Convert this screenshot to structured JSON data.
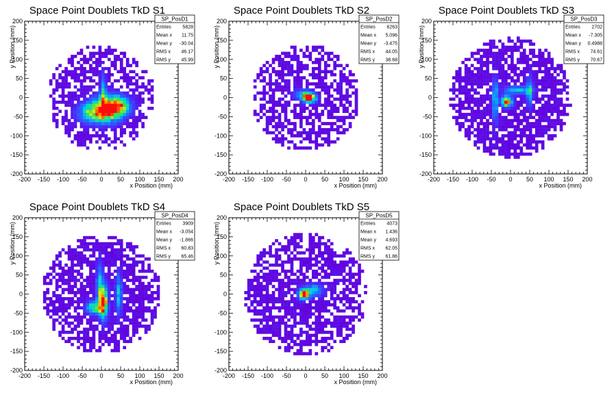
{
  "chart_data": [
    {
      "type": "heatmap",
      "title": "Space Point Doublets TkD S1",
      "xlabel": "x Position (mm)",
      "ylabel": "y Position (mm)",
      "xlim": [
        -200,
        200
      ],
      "ylim": [
        -200,
        200
      ],
      "xticks": [
        "-200",
        "-150",
        "-100",
        "-50",
        "0",
        "50",
        "100",
        "150",
        "200"
      ],
      "yticks": [
        "-200",
        "-150",
        "-100",
        "-50",
        "0",
        "50",
        "100",
        "150",
        "200"
      ],
      "stats": {
        "name": "SP_PosD1",
        "rows": [
          {
            "label": "Entries",
            "value": "5828"
          },
          {
            "label": "Mean x",
            "value": "11.75"
          },
          {
            "label": "Mean y",
            "value": "-30.04"
          },
          {
            "label": "RMS x",
            "value": "46.17"
          },
          {
            "label": "RMS y",
            "value": "45.99"
          }
        ]
      },
      "radius": 140,
      "fill_prob": 0.6,
      "hotspots": [
        {
          "x": 15,
          "y": -30,
          "sx": 28,
          "sy": 22,
          "amp": 1.0
        },
        {
          "x": 45,
          "y": -20,
          "sx": 22,
          "sy": 16,
          "amp": 0.6
        },
        {
          "x": -30,
          "y": -40,
          "sx": 25,
          "sy": 18,
          "amp": 0.45
        },
        {
          "x": 5,
          "y": 20,
          "sx": 5,
          "sy": 35,
          "amp": 0.4
        }
      ],
      "seed": 11
    },
    {
      "type": "heatmap",
      "title": "Space Point Doublets TkD S2",
      "xlabel": "x Position (mm)",
      "ylabel": "y Position (mm)",
      "xlim": [
        -200,
        200
      ],
      "ylim": [
        -200,
        200
      ],
      "xticks": [
        "-200",
        "-150",
        "-100",
        "-50",
        "0",
        "50",
        "100",
        "150",
        "200"
      ],
      "yticks": [
        "-200",
        "-150",
        "-100",
        "-50",
        "0",
        "50",
        "100",
        "150",
        "200"
      ],
      "stats": {
        "name": "SP_PosD2",
        "rows": [
          {
            "label": "Entries",
            "value": "6263"
          },
          {
            "label": "Mean x",
            "value": "5.096"
          },
          {
            "label": "Mean y",
            "value": "-3.475"
          },
          {
            "label": "RMS x",
            "value": "44.05"
          },
          {
            "label": "RMS y",
            "value": "38.68"
          }
        ]
      },
      "radius": 140,
      "fill_prob": 0.62,
      "hotspots": [
        {
          "x": 10,
          "y": 0,
          "sx": 12,
          "sy": 9,
          "amp": 1.0
        },
        {
          "x": -10,
          "y": 8,
          "sx": 16,
          "sy": 10,
          "amp": 0.35
        }
      ],
      "seed": 23
    },
    {
      "type": "heatmap",
      "title": "Space Point Doublets TkD S3",
      "xlabel": "x Position (mm)",
      "ylabel": "y Position (mm)",
      "xlim": [
        -200,
        200
      ],
      "ylim": [
        -200,
        200
      ],
      "xticks": [
        "-200",
        "-150",
        "-100",
        "-50",
        "0",
        "50",
        "100",
        "150",
        "200"
      ],
      "yticks": [
        "-200",
        "-150",
        "-100",
        "-50",
        "0",
        "50",
        "100",
        "150",
        "200"
      ],
      "stats": {
        "name": "SP_PosD3",
        "rows": [
          {
            "label": "Entries",
            "value": "2702"
          },
          {
            "label": "Mean x",
            "value": "-7.305"
          },
          {
            "label": "Mean y",
            "value": "0.4988"
          },
          {
            "label": "RMS x",
            "value": "74.61"
          },
          {
            "label": "RMS y",
            "value": "70.67"
          }
        ]
      },
      "radius": 158,
      "fill_prob": 0.78,
      "hotspots": [
        {
          "x": -10,
          "y": -10,
          "sx": 10,
          "sy": 10,
          "amp": 0.9
        },
        {
          "x": -40,
          "y": -5,
          "sx": 5,
          "sy": 40,
          "amp": 0.5
        },
        {
          "x": 20,
          "y": 20,
          "sx": 25,
          "sy": 8,
          "amp": 0.45
        },
        {
          "x": 50,
          "y": 15,
          "sx": 6,
          "sy": 30,
          "amp": 0.4
        }
      ],
      "seed": 37
    },
    {
      "type": "heatmap",
      "title": "Space Point Doublets TkD S4",
      "xlabel": "x Position (mm)",
      "ylabel": "y Position (mm)",
      "xlim": [
        -200,
        200
      ],
      "ylim": [
        -200,
        200
      ],
      "xticks": [
        "-200",
        "-150",
        "-100",
        "-50",
        "0",
        "50",
        "100",
        "150",
        "200"
      ],
      "yticks": [
        "-200",
        "-150",
        "-100",
        "-50",
        "0",
        "50",
        "100",
        "150",
        "200"
      ],
      "stats": {
        "name": "SP_PosD4",
        "rows": [
          {
            "label": "Entries",
            "value": "3909"
          },
          {
            "label": "Mean x",
            "value": "-3.054"
          },
          {
            "label": "Mean y",
            "value": "-1.866"
          },
          {
            "label": "RMS x",
            "value": "60.83"
          },
          {
            "label": "RMS y",
            "value": "65.46"
          }
        ]
      },
      "radius": 155,
      "fill_prob": 0.74,
      "hotspots": [
        {
          "x": 5,
          "y": -20,
          "sx": 8,
          "sy": 30,
          "amp": 1.0
        },
        {
          "x": -20,
          "y": -35,
          "sx": 14,
          "sy": 12,
          "amp": 0.6
        },
        {
          "x": 45,
          "y": 0,
          "sx": 6,
          "sy": 40,
          "amp": 0.45
        },
        {
          "x": -5,
          "y": 30,
          "sx": 6,
          "sy": 40,
          "amp": 0.4
        }
      ],
      "seed": 41
    },
    {
      "type": "heatmap",
      "title": "Space Point Doublets TkD S5",
      "xlabel": "x Position (mm)",
      "ylabel": "y Position (mm)",
      "xlim": [
        -200,
        200
      ],
      "ylim": [
        -200,
        200
      ],
      "xticks": [
        "-200",
        "-150",
        "-100",
        "-50",
        "0",
        "50",
        "100",
        "150",
        "200"
      ],
      "yticks": [
        "-200",
        "-150",
        "-100",
        "-50",
        "0",
        "50",
        "100",
        "150",
        "200"
      ],
      "stats": {
        "name": "SP_PosD5",
        "rows": [
          {
            "label": "Entries",
            "value": "4073"
          },
          {
            "label": "Mean x",
            "value": "1.436"
          },
          {
            "label": "Mean y",
            "value": "4.693"
          },
          {
            "label": "RMS x",
            "value": "62.05"
          },
          {
            "label": "RMS y",
            "value": "61.86"
          }
        ]
      },
      "radius": 160,
      "fill_prob": 0.72,
      "hotspots": [
        {
          "x": -5,
          "y": 0,
          "sx": 10,
          "sy": 9,
          "amp": 1.0
        },
        {
          "x": 20,
          "y": 10,
          "sx": 18,
          "sy": 12,
          "amp": 0.45
        }
      ],
      "seed": 53
    }
  ]
}
